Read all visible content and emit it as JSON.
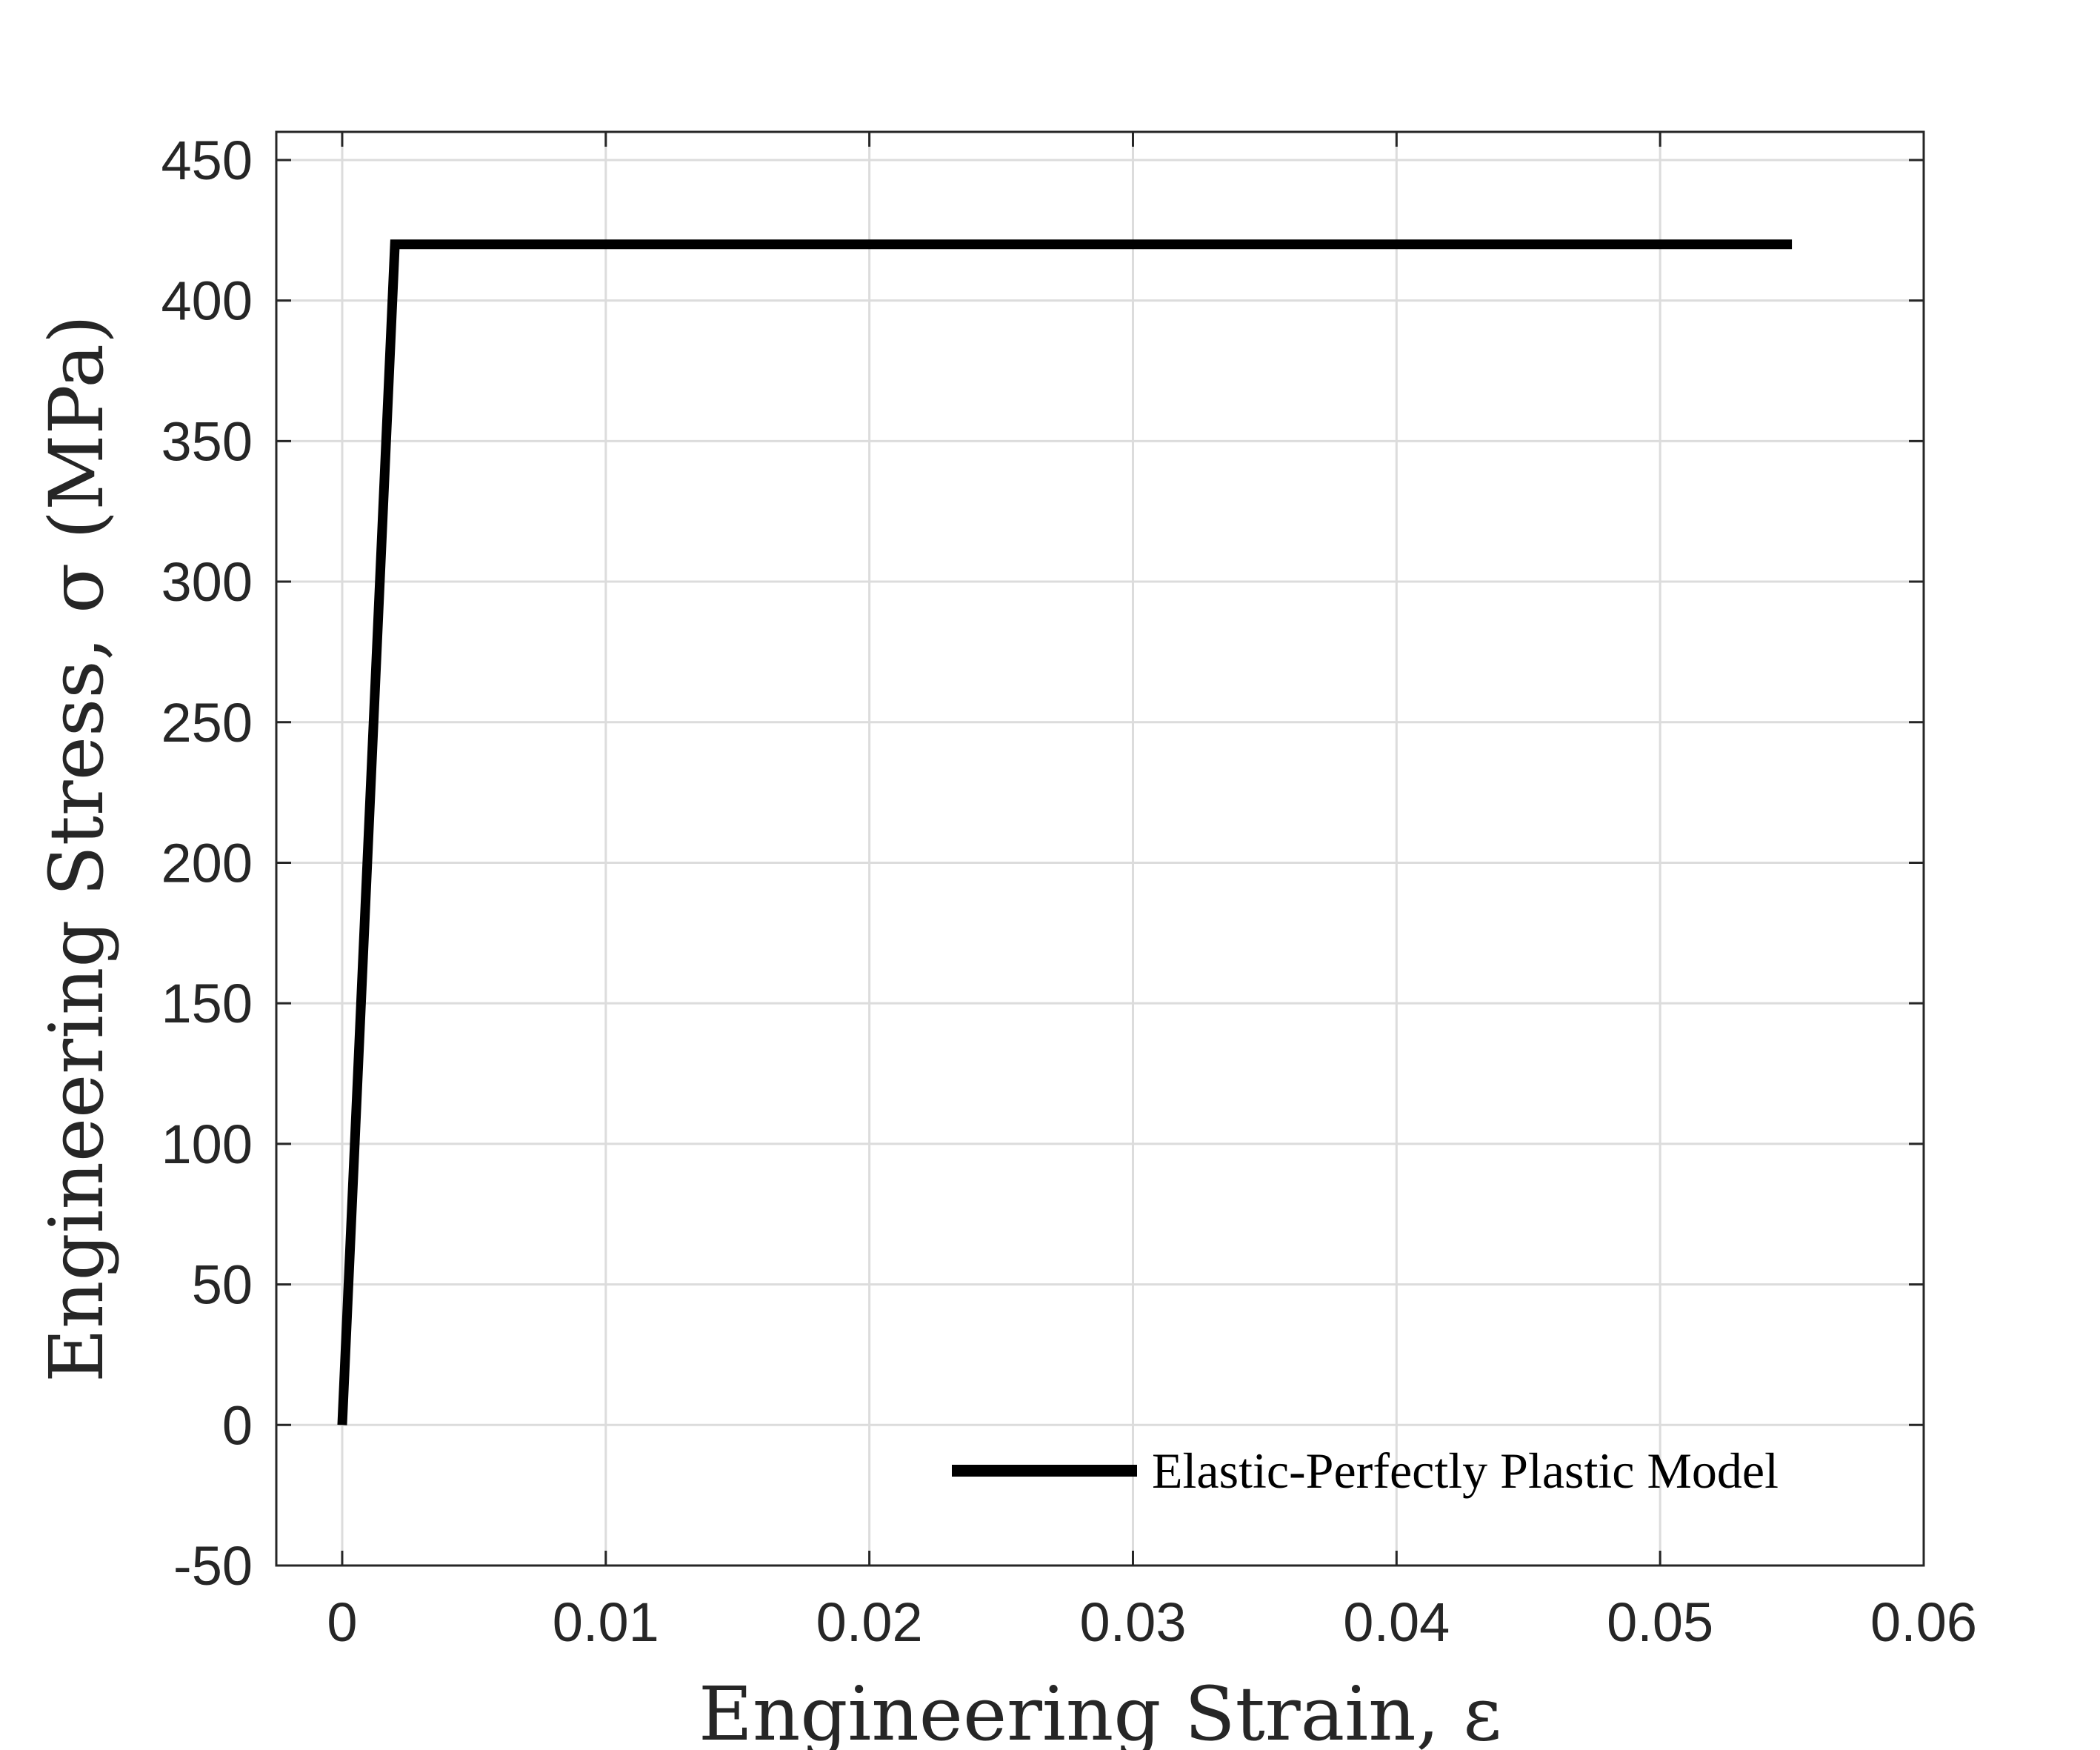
{
  "chart_data": {
    "type": "line",
    "xlabel": "Engineering Strain, ε",
    "ylabel": "Engineering Stress, σ (MPa)",
    "xlim": [
      -0.0025,
      0.06
    ],
    "ylim": [
      -50,
      460
    ],
    "x_ticks": [
      0,
      0.01,
      0.02,
      0.03,
      0.04,
      0.05,
      0.06
    ],
    "x_tick_labels": [
      "0",
      "0.01",
      "0.02",
      "0.03",
      "0.04",
      "0.05",
      "0.06"
    ],
    "y_ticks": [
      -50,
      0,
      50,
      100,
      150,
      200,
      250,
      300,
      350,
      400,
      450
    ],
    "y_tick_labels": [
      "-50",
      "0",
      "50",
      "100",
      "150",
      "200",
      "250",
      "300",
      "350",
      "400",
      "450"
    ],
    "grid": true,
    "legend_position": "bottom-right",
    "series": [
      {
        "name": "Elastic-Perfectly Plastic Model",
        "color": "#000000",
        "x": [
          0,
          0.002,
          0.055
        ],
        "y": [
          0,
          420,
          420
        ]
      }
    ]
  }
}
